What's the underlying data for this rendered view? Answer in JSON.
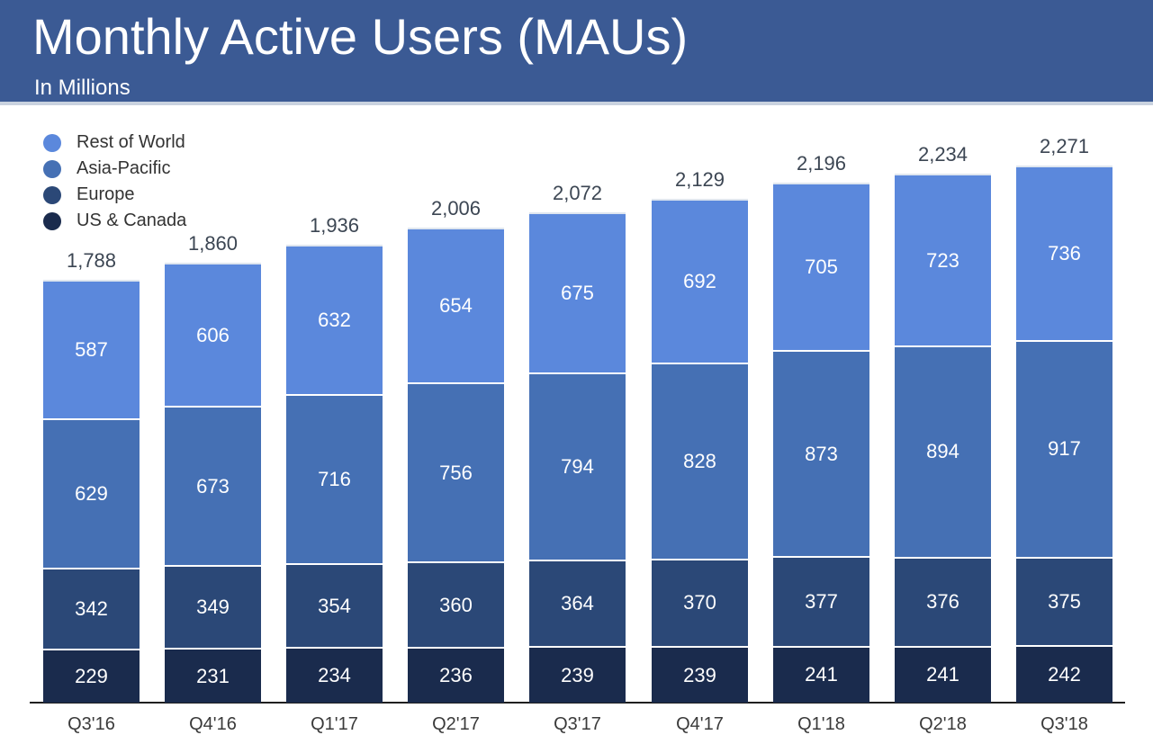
{
  "header": {
    "title": "Monthly Active Users (MAUs)",
    "subtitle": "In Millions",
    "banner_color": "#3B5A94"
  },
  "chart_data": {
    "type": "bar",
    "stacked": true,
    "title": "Monthly Active Users (MAUs)",
    "subtitle": "In Millions",
    "unit": "millions",
    "grid": false,
    "legend_position": "top-left",
    "categories": [
      "Q3'16",
      "Q4'16",
      "Q1'17",
      "Q2'17",
      "Q3'17",
      "Q4'17",
      "Q1'18",
      "Q2'18",
      "Q3'18"
    ],
    "series": [
      {
        "name": "US & Canada",
        "color": "#1A2B4D",
        "values": [
          229,
          231,
          234,
          236,
          239,
          239,
          241,
          241,
          242
        ]
      },
      {
        "name": "Europe",
        "color": "#2B4877",
        "values": [
          342,
          349,
          354,
          360,
          364,
          370,
          377,
          376,
          375
        ]
      },
      {
        "name": "Asia-Pacific",
        "color": "#4570B4",
        "values": [
          629,
          673,
          716,
          756,
          794,
          828,
          873,
          894,
          917
        ]
      },
      {
        "name": "Rest of World",
        "color": "#5B88DC",
        "values": [
          587,
          606,
          632,
          654,
          675,
          692,
          705,
          723,
          736
        ]
      }
    ],
    "totals": [
      "1,788",
      "1,860",
      "1,936",
      "2,006",
      "2,072",
      "2,129",
      "2,196",
      "2,234",
      "2,271"
    ],
    "legend": [
      "Rest of World",
      "Asia-Pacific",
      "Europe",
      "US & Canada"
    ]
  }
}
